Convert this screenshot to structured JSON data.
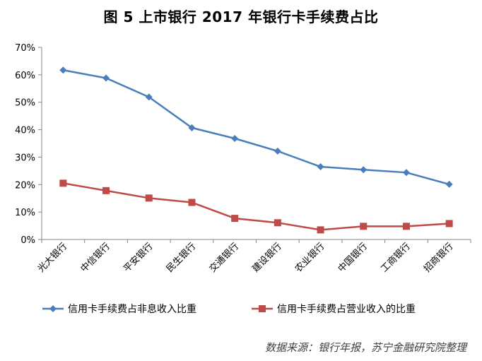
{
  "title": "图 5  上市银行 2017 年银行卡手续费占比",
  "source": "数据来源：银行年报，苏宁金融研究院整理",
  "chart_data": {
    "type": "line",
    "title": "图 5  上市银行 2017 年银行卡手续费占比",
    "categories": [
      "光大银行",
      "中信银行",
      "平安银行",
      "民生银行",
      "交通银行",
      "建设银行",
      "农业银行",
      "中国银行",
      "工商银行",
      "招商银行"
    ],
    "ylim": [
      0,
      70
    ],
    "yticks": [
      "0%",
      "10%",
      "20%",
      "30%",
      "40%",
      "50%",
      "60%",
      "70%"
    ],
    "grid": false,
    "legend_position": "bottom",
    "series": [
      {
        "name": "信用卡手续费占非息收入比重",
        "color": "#4a7ebb",
        "marker": "diamond",
        "values": [
          61.7,
          58.8,
          51.9,
          40.7,
          36.8,
          32.2,
          26.5,
          25.4,
          24.4,
          20.1
        ]
      },
      {
        "name": "信用卡手续费占营业收入的比重",
        "color": "#be4b48",
        "marker": "square",
        "values": [
          20.5,
          17.8,
          15.1,
          13.5,
          7.7,
          6.1,
          3.5,
          4.8,
          4.8,
          5.8
        ]
      }
    ]
  }
}
